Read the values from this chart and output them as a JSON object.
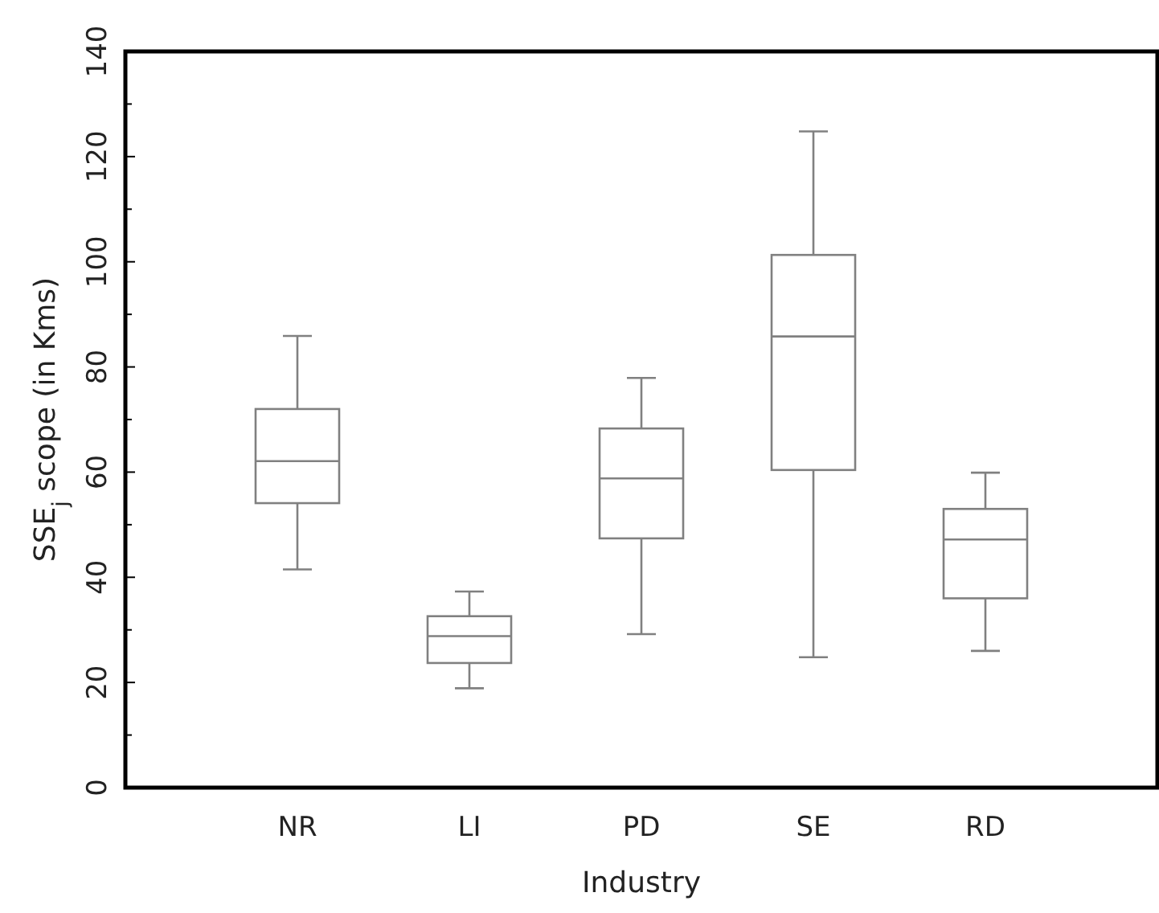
{
  "chart_data": {
    "type": "box",
    "xlabel": "Industry",
    "ylabel": "SSE$_{j}$ scope (in Kms)",
    "categories": [
      "NR",
      "LI",
      "PD",
      "SE",
      "RD"
    ],
    "color": "#808080",
    "boxes": [
      {
        "low": 41.5,
        "q1": 54.1,
        "median": 62.1,
        "q3": 72.0,
        "high": 85.9
      },
      {
        "low": 18.9,
        "q1": 23.7,
        "median": 28.8,
        "q3": 32.6,
        "high": 37.3
      },
      {
        "low": 29.2,
        "q1": 47.4,
        "median": 58.8,
        "q3": 68.3,
        "high": 77.9
      },
      {
        "low": 24.8,
        "q1": 60.4,
        "median": 85.8,
        "q3": 101.3,
        "high": 124.8
      },
      {
        "low": 26.0,
        "q1": 36.0,
        "median": 47.2,
        "q3": 53.0,
        "high": 59.9
      }
    ],
    "ylim": [
      0,
      140
    ],
    "yticks": [
      0,
      {
        "value": 10,
        "label": null
      },
      20,
      {
        "value": 30,
        "label": null
      },
      40,
      {
        "value": 50,
        "label": null
      },
      60,
      {
        "value": 70,
        "label": null
      },
      80,
      {
        "value": 90,
        "label": null
      },
      100,
      {
        "value": 110,
        "label": null
      },
      120,
      {
        "value": 130,
        "label": null
      },
      140
    ],
    "grid": false
  }
}
